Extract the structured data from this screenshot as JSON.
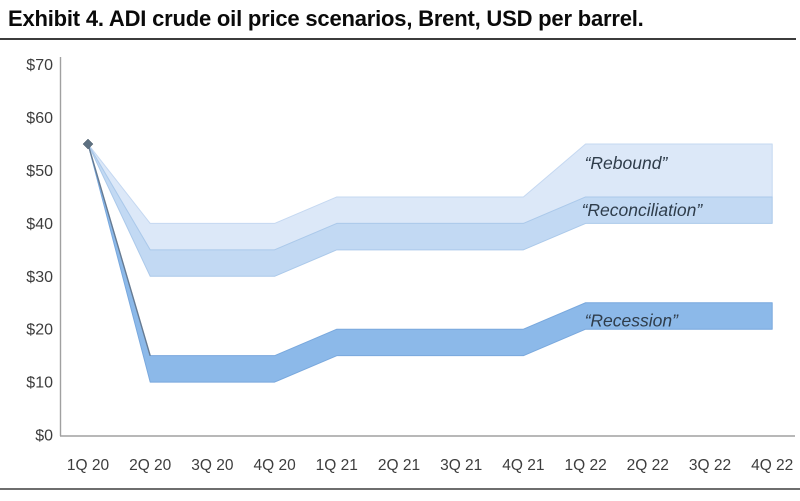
{
  "exhibit": {
    "title": "Exhibit 4. ADI crude oil price scenarios, Brent, USD per barrel."
  },
  "chart_data": {
    "type": "area",
    "subtype": "scenario_range_bands",
    "title": "ADI crude oil price scenarios",
    "unit": "USD per barrel (Brent)",
    "grid": false,
    "legend_position": "labels-inside-bands",
    "categories": [
      "1Q 20",
      "2Q 20",
      "3Q 20",
      "4Q 20",
      "1Q 21",
      "2Q 21",
      "3Q 21",
      "4Q 21",
      "1Q 22",
      "2Q 22",
      "3Q 22",
      "4Q 22"
    ],
    "ylim": [
      0,
      70
    ],
    "y_ticks": [
      {
        "label": "$70",
        "value": 70
      },
      {
        "label": "$60",
        "value": 60
      },
      {
        "label": "$50",
        "value": 50
      },
      {
        "label": "$40",
        "value": 40
      },
      {
        "label": "$30",
        "value": 30
      },
      {
        "label": "$20",
        "value": 20
      },
      {
        "label": "$10",
        "value": 10
      },
      {
        "label": "$0",
        "value": 0
      }
    ],
    "start_point": {
      "category": "1Q 20",
      "value": 55,
      "marker": "diamond",
      "color": "#5d7081"
    },
    "series": [
      {
        "name": "“Rebound”",
        "fill": "#dce8f8",
        "edge": "#c5d8f1",
        "high": [
          55,
          40,
          40,
          40,
          45,
          45,
          45,
          45,
          55,
          55,
          55,
          55
        ],
        "low": [
          55,
          35,
          35,
          35,
          40,
          40,
          40,
          40,
          45,
          45,
          45,
          45
        ],
        "label": {
          "x_index": 8,
          "dx": -1,
          "value": 51.4
        }
      },
      {
        "name": "“Reconciliation”",
        "fill": "#c2d9f3",
        "edge": "#abc9ea",
        "high": [
          55,
          35,
          35,
          35,
          40,
          40,
          40,
          40,
          45,
          45,
          45,
          45
        ],
        "low": [
          55,
          30,
          30,
          30,
          35,
          35,
          35,
          35,
          40,
          40,
          40,
          40
        ],
        "label": {
          "x_index": 8,
          "dx": -4,
          "value": 42.5
        }
      },
      {
        "name": "“Recession”",
        "fill": "#8cb9e9",
        "edge": "#79a8dd",
        "high": [
          55,
          15,
          15,
          15,
          20,
          20,
          20,
          20,
          25,
          25,
          25,
          25
        ],
        "low": [
          55,
          10,
          10,
          10,
          15,
          15,
          15,
          15,
          20,
          20,
          20,
          20
        ],
        "label": {
          "x_index": 8,
          "dx": -1,
          "value": 21.6
        }
      }
    ],
    "colors": {
      "axis_line": "#a0a0a0",
      "tick_label": "#3d3d3d",
      "annotation_text": "#2f3d4b",
      "start_drop_line": "#64768a"
    }
  }
}
